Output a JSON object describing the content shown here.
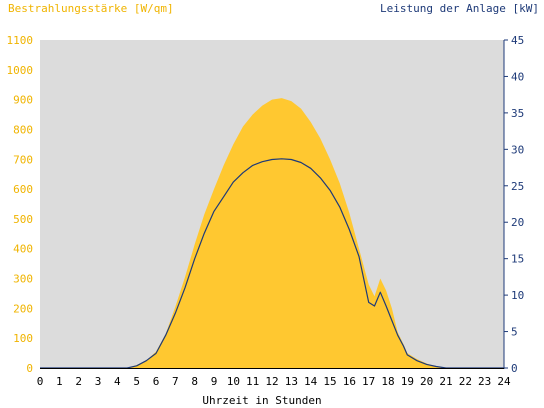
{
  "chart_data": {
    "type": "area",
    "title_left": "Bestrahlungsstärke [W/qm]",
    "title_right": "Leistung der Anlage [kW]",
    "xlabel": "Uhrzeit in Stunden",
    "x_ticks": [
      "0",
      "1",
      "2",
      "3",
      "4",
      "5",
      "6",
      "7",
      "8",
      "9",
      "10",
      "11",
      "12",
      "13",
      "14",
      "15",
      "16",
      "17",
      "18",
      "19",
      "20",
      "21",
      "22",
      "23",
      "24"
    ],
    "y_left_ticks": [
      "0",
      "100",
      "200",
      "300",
      "400",
      "500",
      "600",
      "700",
      "800",
      "900",
      "1000",
      "1100"
    ],
    "y_right_ticks": [
      "0",
      "5",
      "10",
      "15",
      "20",
      "25",
      "30",
      "35",
      "40",
      "45"
    ],
    "xlim": [
      0,
      24
    ],
    "ylim_left": [
      0,
      1100
    ],
    "ylim_right": [
      0,
      45
    ],
    "grid": false,
    "colors": {
      "plot_background": "#dcdcdc",
      "irradiance_fill": "#ffc830",
      "power_line": "#1e3a78",
      "left_axis_text": "#f0b400",
      "right_axis_text": "#1e3a78",
      "xlabel_text": "#000000"
    },
    "series": [
      {
        "axis": "left",
        "style": "area",
        "x": [
          0,
          4.5,
          5,
          5.5,
          6,
          6.5,
          7,
          7.5,
          8,
          8.5,
          9,
          9.5,
          10,
          10.5,
          11,
          11.5,
          12,
          12.5,
          13,
          13.5,
          14,
          14.5,
          15,
          15.5,
          16,
          16.5,
          17,
          17.3,
          17.6,
          17.9,
          18.2,
          18.5,
          18.8,
          19,
          19.5,
          20,
          20.5,
          21,
          24
        ],
        "values": [
          0,
          0,
          10,
          25,
          55,
          115,
          205,
          305,
          415,
          515,
          600,
          680,
          750,
          810,
          850,
          880,
          900,
          905,
          895,
          870,
          825,
          770,
          700,
          620,
          520,
          400,
          280,
          240,
          300,
          260,
          200,
          120,
          80,
          50,
          30,
          15,
          5,
          0,
          0
        ]
      },
      {
        "axis": "right",
        "style": "line",
        "x": [
          0,
          4.5,
          5,
          5.5,
          6,
          6.5,
          7,
          7.5,
          8,
          8.5,
          9,
          9.5,
          10,
          10.5,
          11,
          11.5,
          12,
          12.5,
          13,
          13.5,
          14,
          14.5,
          15,
          15.5,
          16,
          16.5,
          17,
          17.3,
          17.6,
          17.9,
          18.2,
          18.5,
          18.8,
          19,
          19.5,
          20,
          20.5,
          21,
          24
        ],
        "values": [
          0,
          0,
          0.3,
          1,
          2,
          4.5,
          7.5,
          11,
          15,
          18.5,
          21.5,
          23.5,
          25.5,
          26.8,
          27.8,
          28.3,
          28.6,
          28.7,
          28.6,
          28.2,
          27.4,
          26.1,
          24.4,
          22.1,
          19,
          15.3,
          9,
          8.5,
          10.4,
          8.5,
          6.5,
          4.5,
          3,
          1.8,
          1,
          0.5,
          0.2,
          0,
          0
        ]
      }
    ]
  }
}
